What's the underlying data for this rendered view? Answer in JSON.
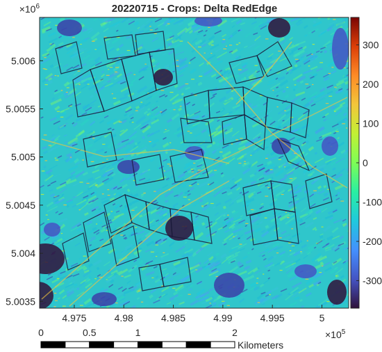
{
  "title": "20220715 - Crops: Delta RedEdge",
  "x_axis": {
    "ticks": [
      {
        "value": 497500,
        "label": "4.975"
      },
      {
        "value": 498000,
        "label": "4.98"
      },
      {
        "value": 498500,
        "label": "4.985"
      },
      {
        "value": 499000,
        "label": "4.99"
      },
      {
        "value": 499500,
        "label": "4.995"
      },
      {
        "value": 500000,
        "label": "5"
      }
    ],
    "range": [
      497150,
      500270
    ],
    "exponent_base": "×10",
    "exponent_power": "5"
  },
  "y_axis": {
    "ticks": [
      {
        "value": 5003500,
        "label": "5.0035"
      },
      {
        "value": 5004000,
        "label": "5.004"
      },
      {
        "value": 5004500,
        "label": "5.0045"
      },
      {
        "value": 5005000,
        "label": "5.005"
      },
      {
        "value": 5005500,
        "label": "5.0055"
      },
      {
        "value": 5006000,
        "label": "5.006"
      }
    ],
    "range": [
      5003430,
      5006450
    ],
    "exponent_base": "×10",
    "exponent_power": "6"
  },
  "colorbar": {
    "colormap": "turbo",
    "range": [
      -370,
      370
    ],
    "ticks": [
      {
        "value": 300,
        "label": "300"
      },
      {
        "value": 200,
        "label": "200"
      },
      {
        "value": 100,
        "label": "100"
      },
      {
        "value": 0,
        "label": "0"
      },
      {
        "value": -100,
        "label": "-100"
      },
      {
        "value": -200,
        "label": "-200"
      },
      {
        "value": -300,
        "label": "-300"
      }
    ]
  },
  "scale_bar": {
    "unit_label": "Kilometers",
    "max_km": 2,
    "ticks": [
      {
        "km": 0,
        "label": "0"
      },
      {
        "km": 0.5,
        "label": "0.5"
      },
      {
        "km": 1,
        "label": "1"
      },
      {
        "km": 2,
        "label": "2"
      }
    ]
  },
  "colors": {
    "field_base": "#2fc6cb",
    "field_boundary": "#1a1a3a",
    "dark_patch": "#30123b",
    "frame": "#262626"
  }
}
